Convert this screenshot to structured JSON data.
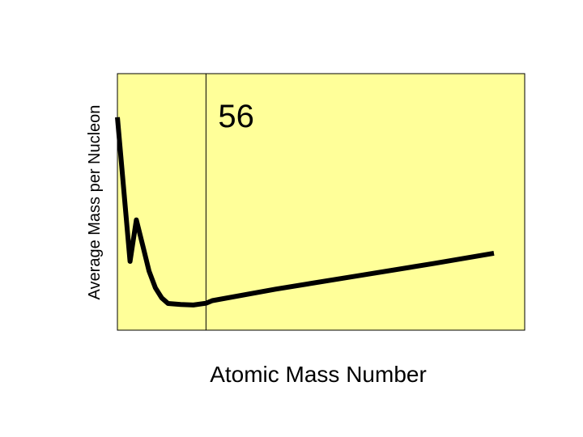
{
  "chart_data": {
    "type": "line",
    "xlabel": "Atomic Mass Number",
    "ylabel": "Average Mass per Nucleon",
    "annotations": [
      {
        "text": "56",
        "x": 56
      }
    ],
    "xlim": [
      0,
      238
    ],
    "ylim": [
      0,
      1
    ],
    "grid": false,
    "x": [
      0,
      8,
      12,
      16,
      20,
      24,
      28,
      32,
      40,
      48,
      56,
      60,
      100,
      150,
      200,
      238
    ],
    "series": [
      {
        "values": [
          0.83,
          0.268,
          0.43,
          0.33,
          0.23,
          0.165,
          0.126,
          0.104,
          0.1,
          0.098,
          0.105,
          0.115,
          0.16,
          0.21,
          0.26,
          0.3
        ]
      }
    ],
    "colors": {
      "plot_background": "#ffff99",
      "line": "#000000",
      "marker_line": "#000000"
    }
  }
}
